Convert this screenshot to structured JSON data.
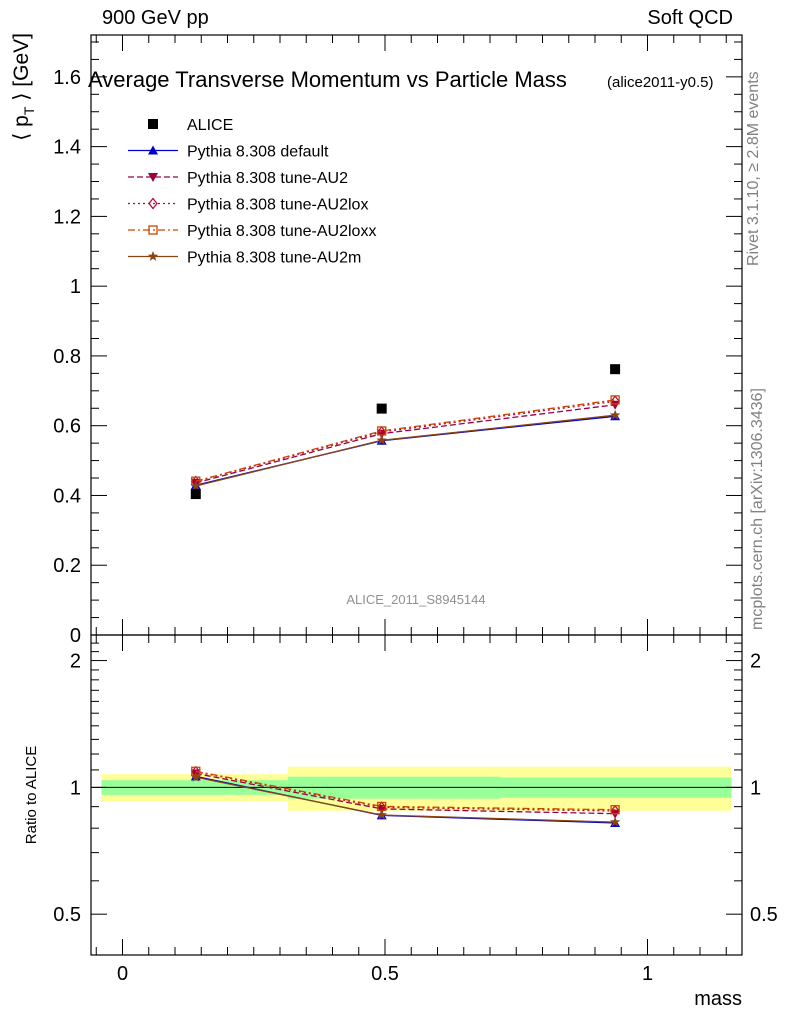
{
  "header": {
    "left": "900 GeV pp",
    "right": "Soft QCD"
  },
  "side_labels": {
    "rivet": "Rivet 3.1.10, ≥ 2.8M events",
    "mcplots": "mcplots.cern.ch [arXiv:1306.3436]"
  },
  "chart_data": [
    {
      "type": "scatter",
      "panel": "main",
      "title": "Average Transverse Momentum vs Particle Mass",
      "subtitle": "(alice2011-y0.5)",
      "ylabel": "⟨ p_T ⟩ [GeV]",
      "watermark": "ALICE_2011_S8945144",
      "xlim": [
        -0.06,
        1.18
      ],
      "ylim": [
        0,
        1.72
      ],
      "y_ticks": [
        0,
        0.2,
        0.4,
        0.6,
        0.8,
        1,
        1.2,
        1.4,
        1.6
      ],
      "y_tick_labels": [
        "0",
        "0.2",
        "0.4",
        "0.6",
        "0.8",
        "1",
        "1.2",
        "1.4",
        "1.6"
      ],
      "x": [
        0.1396,
        0.4937,
        0.9383
      ],
      "data": {
        "name": "ALICE",
        "values": [
          0.404,
          0.649,
          0.762
        ],
        "color": "#000000",
        "marker": "square"
      },
      "series": [
        {
          "name": "Pythia 8.308 default",
          "values": [
            0.429,
            0.557,
            0.627
          ],
          "color": "#0000cc",
          "dash": "solid",
          "marker": "triangle-up"
        },
        {
          "name": "Pythia 8.308 tune-AU2",
          "values": [
            0.436,
            0.577,
            0.66
          ],
          "color": "#990044",
          "dash": "dashed",
          "marker": "triangle-down"
        },
        {
          "name": "Pythia 8.308 tune-AU2lox",
          "values": [
            0.44,
            0.582,
            0.67
          ],
          "color": "#bb0033",
          "dash": "dotted",
          "marker": "diamond-open"
        },
        {
          "name": "Pythia 8.308 tune-AU2loxx",
          "values": [
            0.441,
            0.585,
            0.674
          ],
          "color": "#cc4400",
          "dash": "dashdot",
          "marker": "square-open"
        },
        {
          "name": "Pythia 8.308 tune-AU2m",
          "values": [
            0.427,
            0.558,
            0.63
          ],
          "color": "#8b4513",
          "dash": "solid",
          "marker": "star"
        }
      ],
      "legend": "top-left"
    },
    {
      "type": "line",
      "panel": "ratio",
      "ylabel": "Ratio to ALICE",
      "xlabel": "mass",
      "xlim": [
        -0.06,
        1.18
      ],
      "ylim": [
        0.4,
        2.3
      ],
      "y_scale": "log",
      "y_ticks": [
        0.5,
        1,
        2
      ],
      "y_tick_labels": [
        "0.5",
        "1",
        "2"
      ],
      "x_ticks": [
        0,
        0.5,
        1
      ],
      "x_tick_labels": [
        "0",
        "0.5",
        "1"
      ],
      "x": [
        0.1396,
        0.4937,
        0.9383
      ],
      "bands": [
        {
          "x_range": [
            -0.04,
            0.315
          ],
          "inner": [
            0.96,
            1.04
          ],
          "outer": [
            0.925,
            1.075
          ]
        },
        {
          "x_range": [
            0.315,
            0.72
          ],
          "inner": [
            0.94,
            1.06
          ],
          "outer": [
            0.88,
            1.12
          ]
        },
        {
          "x_range": [
            0.72,
            1.16
          ],
          "inner": [
            0.945,
            1.055
          ],
          "outer": [
            0.88,
            1.12
          ]
        }
      ],
      "series": [
        {
          "name": "Pythia 8.308 default",
          "values": [
            1.062,
            0.858,
            0.823
          ]
        },
        {
          "name": "Pythia 8.308 tune-AU2",
          "values": [
            1.079,
            0.889,
            0.866
          ]
        },
        {
          "name": "Pythia 8.308 tune-AU2lox",
          "values": [
            1.089,
            0.897,
            0.879
          ]
        },
        {
          "name": "Pythia 8.308 tune-AU2loxx",
          "values": [
            1.092,
            0.901,
            0.885
          ]
        },
        {
          "name": "Pythia 8.308 tune-AU2m",
          "values": [
            1.057,
            0.86,
            0.827
          ]
        }
      ]
    }
  ]
}
